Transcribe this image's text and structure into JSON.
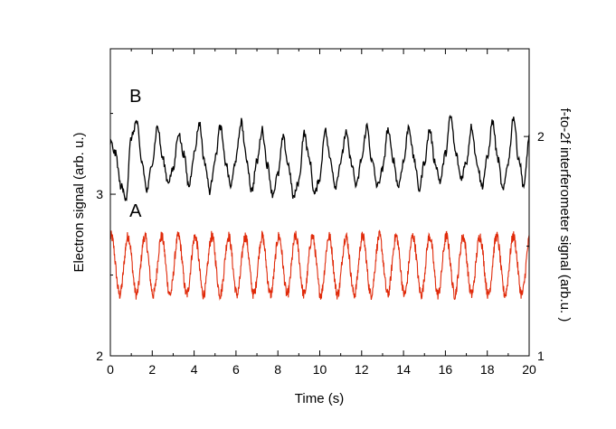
{
  "chart_data": {
    "type": "line",
    "xlabel": "Time (s)",
    "ylabel": "Electron signal (arb. u.)",
    "y2label": "f-to-2f interferometer signal (arb.u. )",
    "xlim": [
      0,
      20
    ],
    "ylim": [
      2,
      3.9
    ],
    "y2lim": [
      1,
      2.4
    ],
    "x_ticks": [
      "0",
      "2",
      "4",
      "6",
      "8",
      "10",
      "12",
      "14",
      "16",
      "18",
      "20"
    ],
    "y_ticks": [
      "2",
      "3"
    ],
    "y2_ticks": [
      "1",
      "2"
    ],
    "grid": false,
    "legend": "none",
    "series": [
      {
        "name": "B",
        "axis": "left",
        "color": "#000000",
        "description_free": true,
        "x": [
          0,
          0.25,
          0.5,
          0.75,
          1.0,
          1.25,
          1.5,
          1.75,
          2.0,
          2.25,
          2.5,
          2.75,
          3.0,
          3.25,
          3.5,
          3.75,
          4.0,
          4.25,
          4.5,
          4.75,
          5.0,
          5.25,
          5.5,
          5.75,
          6.0,
          6.25,
          6.5,
          6.75,
          7.0,
          7.25,
          7.5,
          7.75,
          8.0,
          8.25,
          8.5,
          8.75,
          9.0,
          9.25,
          9.5,
          9.75,
          10.0,
          10.25,
          10.5,
          10.75,
          11.0,
          11.25,
          11.5,
          11.75,
          12.0,
          12.25,
          12.5,
          12.75,
          13.0,
          13.25,
          13.5,
          13.75,
          14.0,
          14.25,
          14.5,
          14.75,
          15.0,
          15.25,
          15.5,
          15.75,
          16.0,
          16.25,
          16.5,
          16.75,
          17.0,
          17.25,
          17.5,
          17.75,
          18.0,
          18.25,
          18.5,
          18.75,
          19.0,
          19.25,
          19.5,
          19.75,
          20.0
        ],
        "values": [
          3.32,
          3.25,
          3.05,
          2.98,
          3.35,
          3.45,
          3.2,
          3.02,
          3.2,
          3.42,
          3.22,
          3.08,
          3.15,
          3.38,
          3.25,
          3.05,
          3.25,
          3.44,
          3.2,
          3.02,
          3.22,
          3.42,
          3.2,
          3.05,
          3.22,
          3.45,
          3.22,
          3.02,
          3.2,
          3.4,
          3.18,
          3.0,
          3.12,
          3.35,
          3.18,
          2.98,
          3.08,
          3.38,
          3.22,
          3.0,
          3.1,
          3.4,
          3.22,
          3.05,
          3.2,
          3.38,
          3.2,
          3.05,
          3.22,
          3.42,
          3.2,
          3.05,
          3.15,
          3.4,
          3.22,
          3.05,
          3.2,
          3.42,
          3.22,
          3.03,
          3.2,
          3.4,
          3.2,
          3.08,
          3.25,
          3.48,
          3.25,
          3.1,
          3.2,
          3.42,
          3.2,
          3.05,
          3.22,
          3.45,
          3.22,
          3.02,
          3.2,
          3.48,
          3.22,
          3.05,
          3.35
        ]
      },
      {
        "name": "A",
        "axis": "left",
        "color": "#e02a0a",
        "period": 0.8,
        "center": 2.56,
        "amplitude": 0.18,
        "noise": 0.035
      }
    ],
    "curve_labels": [
      {
        "text": "B",
        "x": 1.2,
        "y": 3.57
      },
      {
        "text": "A",
        "x": 1.2,
        "y": 2.86
      }
    ]
  }
}
